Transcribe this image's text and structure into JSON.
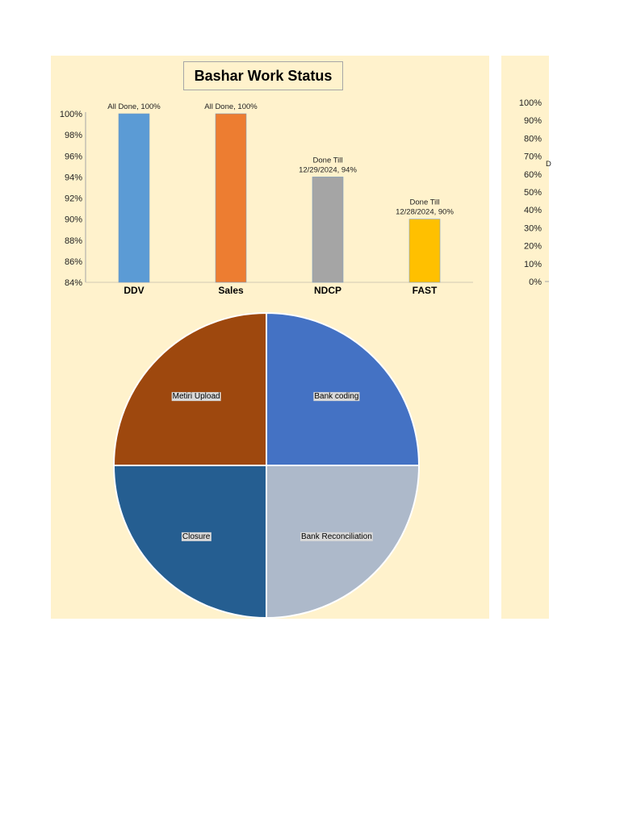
{
  "chart_data": [
    {
      "type": "bar",
      "title": "Bashar Work Status",
      "categories": [
        "DDV",
        "Sales",
        "NDCP",
        "FAST"
      ],
      "values": [
        100,
        100,
        94,
        90
      ],
      "data_labels": [
        [
          "All Done, 100%"
        ],
        [
          "All Done, 100%"
        ],
        [
          "Done Till",
          "12/29/2024, 94%"
        ],
        [
          "Done Till",
          "12/28/2024, 90%"
        ]
      ],
      "colors": [
        "#5b9bd5",
        "#ed7d31",
        "#a5a5a5",
        "#ffc000"
      ],
      "ylim": [
        84,
        100
      ],
      "yticks": [
        "84%",
        "86%",
        "88%",
        "90%",
        "92%",
        "94%",
        "96%",
        "98%",
        "100%"
      ],
      "xlabel": "",
      "ylabel": "",
      "grid": false,
      "legend": "none"
    },
    {
      "type": "pie",
      "labels": [
        "Bank coding",
        "Bank Reconciliation",
        "Closure",
        "Metiri Upload"
      ],
      "values": [
        25,
        25,
        25,
        25
      ],
      "colors": [
        "#4472c4",
        "#adb9ca",
        "#255e91",
        "#9e480e"
      ]
    },
    {
      "type": "bar",
      "partial": true,
      "yticks": [
        "0%",
        "10%",
        "20%",
        "30%",
        "40%",
        "50%",
        "60%",
        "70%",
        "80%",
        "90%",
        "100%"
      ],
      "ylim": [
        0,
        100
      ],
      "visible_fragment": "D"
    }
  ]
}
